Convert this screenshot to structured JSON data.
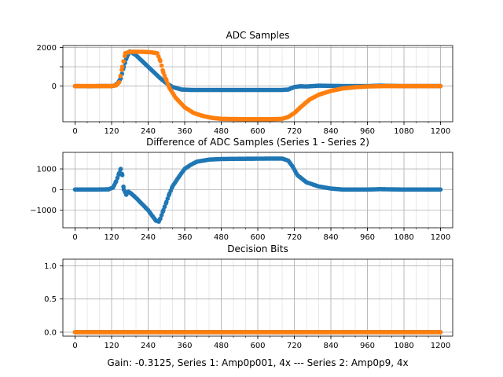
{
  "figure": {
    "caption": "Gain: -0.3125, Series 1: Amp0p001, 4x --- Series 2: Amp0p9, 4x",
    "colors": {
      "series1": "#1f77b4",
      "series2": "#ff7f0e"
    }
  },
  "chart_data": [
    {
      "type": "scatter",
      "title": "ADC Samples",
      "xlim": [
        -40,
        1240
      ],
      "ylim": [
        -1850,
        2100
      ],
      "xticks": [
        0,
        120,
        240,
        360,
        480,
        600,
        720,
        840,
        960,
        1080,
        1200
      ],
      "yticks": [
        0,
        1000,
        2000
      ],
      "ytick_labels": [
        "0",
        "",
        "2000"
      ],
      "grid": true,
      "series": [
        {
          "color": "#1f77b4",
          "points": [
            [
              0,
              0
            ],
            [
              50,
              -10
            ],
            [
              100,
              5
            ],
            [
              120,
              0
            ],
            [
              130,
              30
            ],
            [
              140,
              150
            ],
            [
              150,
              400
            ],
            [
              160,
              1000
            ],
            [
              170,
              1500
            ],
            [
              180,
              1800
            ],
            [
              200,
              1600
            ],
            [
              220,
              1300
            ],
            [
              240,
              1000
            ],
            [
              260,
              700
            ],
            [
              280,
              400
            ],
            [
              300,
              150
            ],
            [
              320,
              -50
            ],
            [
              350,
              -180
            ],
            [
              380,
              -200
            ],
            [
              420,
              -200
            ],
            [
              500,
              -200
            ],
            [
              600,
              -200
            ],
            [
              680,
              -200
            ],
            [
              700,
              -180
            ],
            [
              720,
              -50
            ],
            [
              740,
              -10
            ],
            [
              760,
              -20
            ],
            [
              800,
              20
            ],
            [
              840,
              10
            ],
            [
              900,
              0
            ],
            [
              960,
              0
            ],
            [
              1000,
              20
            ],
            [
              1080,
              0
            ],
            [
              1200,
              0
            ]
          ]
        },
        {
          "color": "#ff7f0e",
          "points": [
            [
              0,
              0
            ],
            [
              60,
              0
            ],
            [
              120,
              0
            ],
            [
              135,
              40
            ],
            [
              145,
              200
            ],
            [
              155,
              1000
            ],
            [
              165,
              1700
            ],
            [
              180,
              1780
            ],
            [
              220,
              1780
            ],
            [
              250,
              1750
            ],
            [
              270,
              1700
            ],
            [
              280,
              1300
            ],
            [
              290,
              700
            ],
            [
              300,
              300
            ],
            [
              310,
              -100
            ],
            [
              330,
              -600
            ],
            [
              360,
              -1100
            ],
            [
              390,
              -1400
            ],
            [
              420,
              -1550
            ],
            [
              450,
              -1650
            ],
            [
              480,
              -1700
            ],
            [
              560,
              -1720
            ],
            [
              640,
              -1720
            ],
            [
              680,
              -1700
            ],
            [
              700,
              -1600
            ],
            [
              720,
              -1400
            ],
            [
              740,
              -1100
            ],
            [
              770,
              -700
            ],
            [
              800,
              -450
            ],
            [
              840,
              -250
            ],
            [
              880,
              -120
            ],
            [
              920,
              -60
            ],
            [
              960,
              -20
            ],
            [
              1020,
              0
            ],
            [
              1100,
              0
            ],
            [
              1200,
              0
            ]
          ]
        }
      ]
    },
    {
      "type": "scatter",
      "title": "Difference of ADC Samples (Series 1 - Series 2)",
      "xlim": [
        -40,
        1240
      ],
      "ylim": [
        -1850,
        1800
      ],
      "xticks": [
        0,
        120,
        240,
        360,
        480,
        600,
        720,
        840,
        960,
        1080,
        1200
      ],
      "yticks": [
        -1000,
        0,
        1000
      ],
      "ytick_labels": [
        "−1000",
        "0",
        "1000"
      ],
      "grid": true,
      "series": [
        {
          "color": "#1f77b4",
          "points": [
            [
              0,
              0
            ],
            [
              60,
              0
            ],
            [
              110,
              10
            ],
            [
              125,
              100
            ],
            [
              135,
              400
            ],
            [
              145,
              800
            ],
            [
              150,
              1000
            ],
            [
              155,
              700
            ],
            [
              160,
              0
            ],
            [
              168,
              -250
            ],
            [
              175,
              -100
            ],
            [
              185,
              -200
            ],
            [
              200,
              -400
            ],
            [
              220,
              -700
            ],
            [
              240,
              -1000
            ],
            [
              255,
              -1300
            ],
            [
              265,
              -1500
            ],
            [
              275,
              -1550
            ],
            [
              280,
              -1400
            ],
            [
              290,
              -1000
            ],
            [
              300,
              -600
            ],
            [
              310,
              -200
            ],
            [
              320,
              150
            ],
            [
              340,
              600
            ],
            [
              360,
              1000
            ],
            [
              380,
              1200
            ],
            [
              400,
              1350
            ],
            [
              440,
              1450
            ],
            [
              480,
              1480
            ],
            [
              560,
              1490
            ],
            [
              640,
              1500
            ],
            [
              680,
              1500
            ],
            [
              700,
              1400
            ],
            [
              715,
              1100
            ],
            [
              730,
              700
            ],
            [
              760,
              350
            ],
            [
              800,
              150
            ],
            [
              840,
              50
            ],
            [
              880,
              0
            ],
            [
              960,
              0
            ],
            [
              1000,
              20
            ],
            [
              1080,
              0
            ],
            [
              1200,
              0
            ]
          ]
        }
      ]
    },
    {
      "type": "scatter",
      "title": "Decision Bits",
      "xlim": [
        -40,
        1240
      ],
      "ylim": [
        -0.06,
        1.1
      ],
      "xticks": [
        0,
        120,
        240,
        360,
        480,
        600,
        720,
        840,
        960,
        1080,
        1200
      ],
      "yticks": [
        0.0,
        0.5,
        1.0
      ],
      "ytick_labels": [
        "0.0",
        "0.5",
        "1.0"
      ],
      "grid": true,
      "series": [
        {
          "color": "#1f77b4",
          "points": [
            [
              0,
              0
            ],
            [
              1200,
              0
            ]
          ]
        },
        {
          "color": "#ff7f0e",
          "points": [
            [
              0,
              0
            ],
            [
              1200,
              0
            ]
          ]
        }
      ]
    }
  ]
}
